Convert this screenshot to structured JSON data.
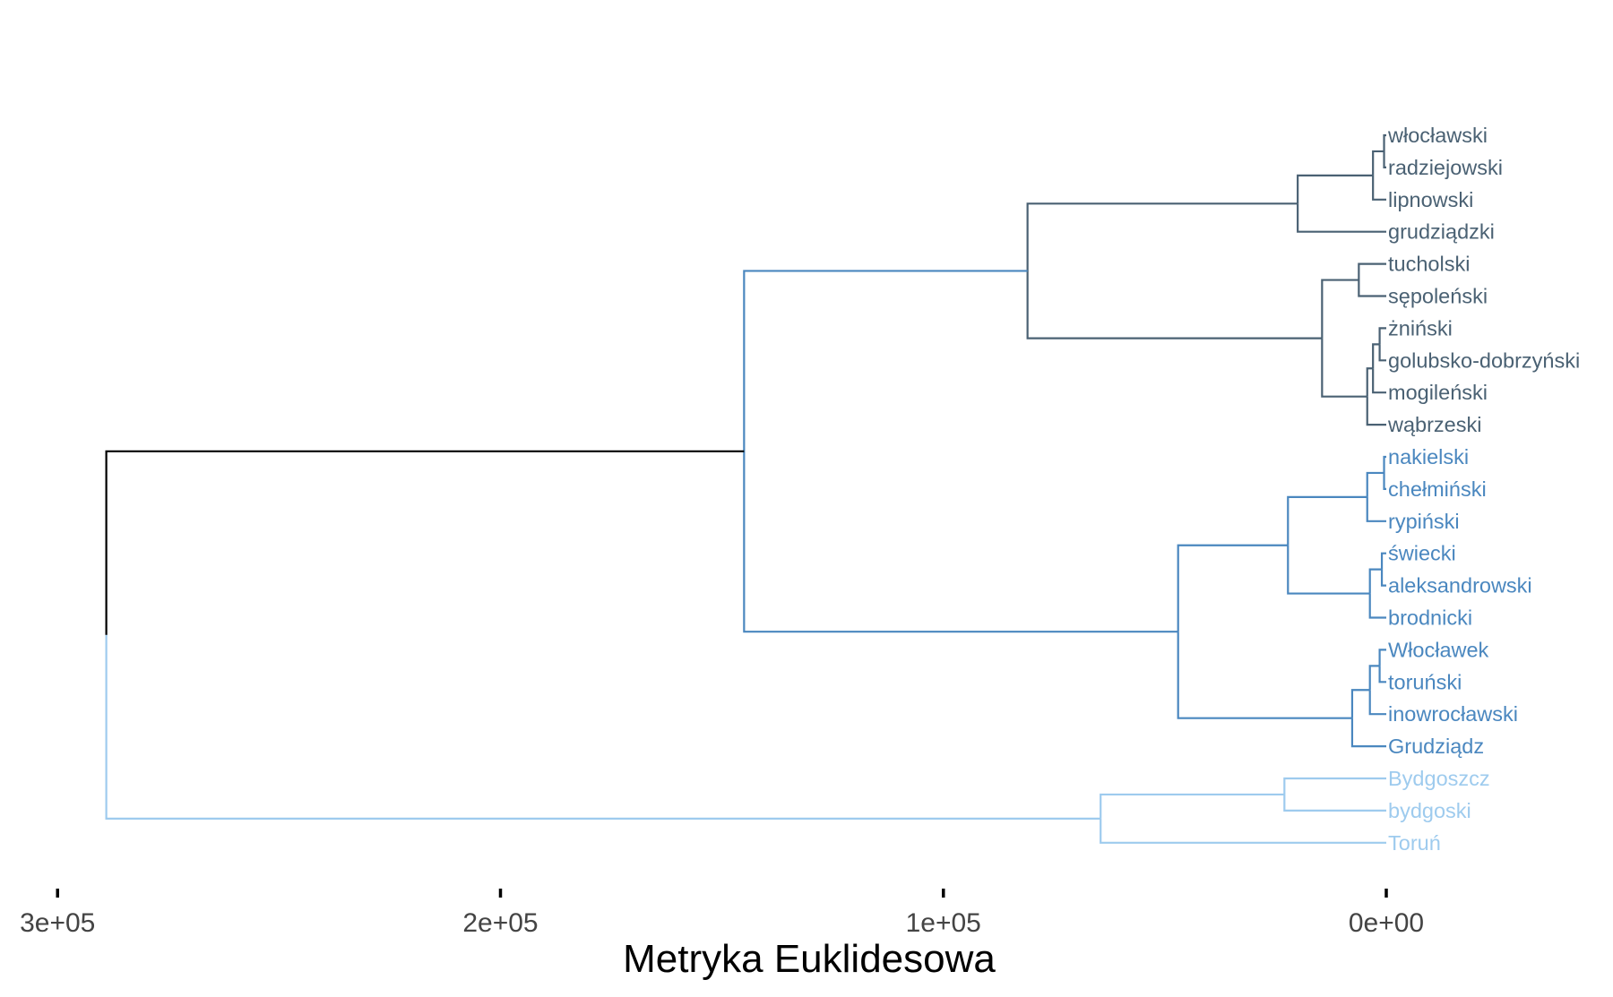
{
  "chart_data": {
    "type": "dendrogram",
    "orientation": "horizontal",
    "title": "",
    "xlabel": "Metryka Euklidesowa",
    "ylabel": "",
    "xlim": [
      300000,
      0
    ],
    "x_reversed": true,
    "grid": false,
    "x_ticks": [
      {
        "value": 300000,
        "label": "3e+05"
      },
      {
        "value": 200000,
        "label": "2e+05"
      },
      {
        "value": 100000,
        "label": "1e+05"
      },
      {
        "value": 0,
        "label": "0e+00"
      }
    ],
    "clusters": [
      {
        "id": "A",
        "color": "#4a6173"
      },
      {
        "id": "B",
        "color": "#4a87bf"
      },
      {
        "id": "C",
        "color": "#9ecbee"
      }
    ],
    "root_color": "#000000",
    "leaves": [
      {
        "label": "włocławski",
        "cluster": "A"
      },
      {
        "label": "radziejowski",
        "cluster": "A"
      },
      {
        "label": "lipnowski",
        "cluster": "A"
      },
      {
        "label": "grudziądzki",
        "cluster": "A"
      },
      {
        "label": "tucholski",
        "cluster": "A"
      },
      {
        "label": "sępoleński",
        "cluster": "A"
      },
      {
        "label": "żniński",
        "cluster": "A"
      },
      {
        "label": "golubsko-dobrzyński",
        "cluster": "A"
      },
      {
        "label": "mogileński",
        "cluster": "A"
      },
      {
        "label": "wąbrzeski",
        "cluster": "A"
      },
      {
        "label": "nakielski",
        "cluster": "B"
      },
      {
        "label": "chełmiński",
        "cluster": "B"
      },
      {
        "label": "rypiński",
        "cluster": "B"
      },
      {
        "label": "świecki",
        "cluster": "B"
      },
      {
        "label": "aleksandrowski",
        "cluster": "B"
      },
      {
        "label": "brodnicki",
        "cluster": "B"
      },
      {
        "label": "Włocławek",
        "cluster": "B"
      },
      {
        "label": "toruński",
        "cluster": "B"
      },
      {
        "label": "inowrocławski",
        "cluster": "B"
      },
      {
        "label": "Grudziądz",
        "cluster": "B"
      },
      {
        "label": "Bydgoszcz",
        "cluster": "C"
      },
      {
        "label": "bydgoski",
        "cluster": "C"
      },
      {
        "label": "Toruń",
        "cluster": "C"
      }
    ],
    "merges": [
      {
        "id": "m1",
        "children": [
          "L0",
          "L1"
        ],
        "height": 500,
        "cluster": "A"
      },
      {
        "id": "m2",
        "children": [
          "m1",
          "L2"
        ],
        "height": 3000,
        "cluster": "A"
      },
      {
        "id": "m3",
        "children": [
          "m2",
          "L3"
        ],
        "height": 20000,
        "cluster": "A"
      },
      {
        "id": "m4",
        "children": [
          "L4",
          "L5"
        ],
        "height": 6200,
        "cluster": "A"
      },
      {
        "id": "m5",
        "children": [
          "L6",
          "L7"
        ],
        "height": 1500,
        "cluster": "A"
      },
      {
        "id": "m6",
        "children": [
          "m5",
          "L8"
        ],
        "height": 3000,
        "cluster": "A"
      },
      {
        "id": "m7",
        "children": [
          "m6",
          "L9"
        ],
        "height": 4300,
        "cluster": "A"
      },
      {
        "id": "m8",
        "children": [
          "m4",
          "m7"
        ],
        "height": 14500,
        "cluster": "A"
      },
      {
        "id": "m9",
        "children": [
          "m3",
          "m8"
        ],
        "height": 81000,
        "cluster": "A"
      },
      {
        "id": "m10",
        "children": [
          "L10",
          "L11"
        ],
        "height": 500,
        "cluster": "B"
      },
      {
        "id": "m11",
        "children": [
          "m10",
          "L12"
        ],
        "height": 4300,
        "cluster": "B"
      },
      {
        "id": "m12",
        "children": [
          "L13",
          "L14"
        ],
        "height": 1000,
        "cluster": "B"
      },
      {
        "id": "m13",
        "children": [
          "m12",
          "L15"
        ],
        "height": 3700,
        "cluster": "B"
      },
      {
        "id": "m14",
        "children": [
          "m11",
          "m13"
        ],
        "height": 22200,
        "cluster": "B"
      },
      {
        "id": "m15",
        "children": [
          "L16",
          "L17"
        ],
        "height": 1500,
        "cluster": "B"
      },
      {
        "id": "m16",
        "children": [
          "m15",
          "L18"
        ],
        "height": 3700,
        "cluster": "B"
      },
      {
        "id": "m17",
        "children": [
          "m16",
          "L19"
        ],
        "height": 7700,
        "cluster": "B"
      },
      {
        "id": "m18",
        "children": [
          "m14",
          "m17"
        ],
        "height": 47000,
        "cluster": "B"
      },
      {
        "id": "m19",
        "children": [
          "m9",
          "m18"
        ],
        "height": 145000,
        "cluster": "B"
      },
      {
        "id": "m20",
        "children": [
          "L20",
          "L21"
        ],
        "height": 23000,
        "cluster": "C"
      },
      {
        "id": "m21",
        "children": [
          "m20",
          "L22"
        ],
        "height": 64500,
        "cluster": "C"
      },
      {
        "id": "m22",
        "children": [
          "m19",
          "m21"
        ],
        "height": 289000,
        "cluster": "root",
        "split_colors": [
          "#000000",
          "#9ecbee"
        ]
      }
    ]
  }
}
